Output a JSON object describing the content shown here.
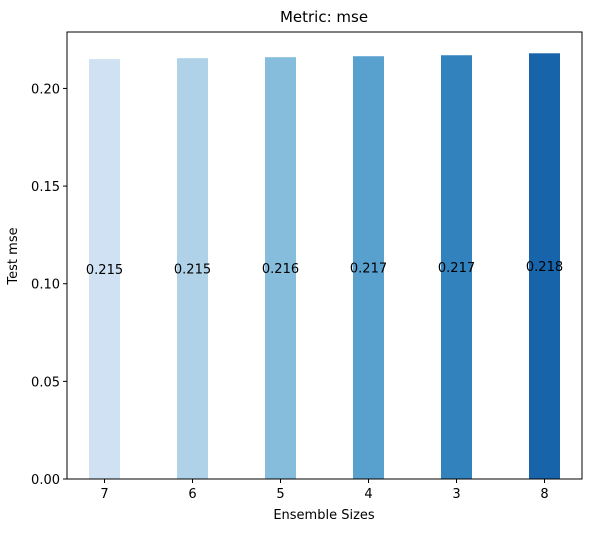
{
  "chart_data": {
    "type": "bar",
    "title": "Metric: mse",
    "xlabel": "Ensemble Sizes",
    "ylabel": "Test mse",
    "categories": [
      "7",
      "6",
      "5",
      "4",
      "3",
      "8"
    ],
    "values": [
      0.215,
      0.2155,
      0.216,
      0.2165,
      0.217,
      0.218
    ],
    "data_labels": [
      "0.215",
      "0.215",
      "0.216",
      "0.217",
      "0.217",
      "0.218"
    ],
    "colors": [
      "#cfe1f2",
      "#b0d2e8",
      "#86bcdc",
      "#58a1cf",
      "#3282be",
      "#1764ab"
    ],
    "ylim": [
      0,
      0.2289
    ],
    "yticks": [
      0.0,
      0.05,
      0.1,
      0.15,
      0.2
    ],
    "ytick_labels": [
      "0.00",
      "0.05",
      "0.10",
      "0.15",
      "0.20"
    ],
    "grid": false,
    "legend": "none"
  }
}
